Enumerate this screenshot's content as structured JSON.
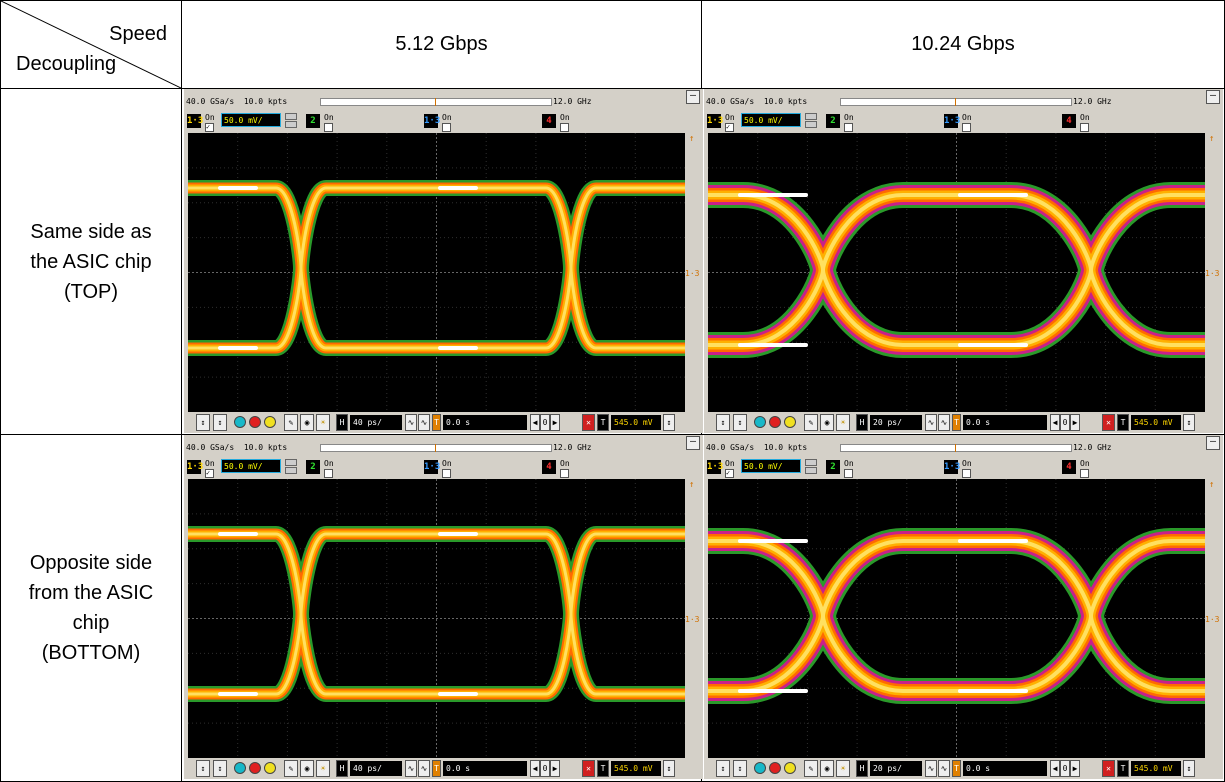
{
  "table": {
    "corner": {
      "speed": "Speed",
      "decoupling": "Decoupling"
    },
    "columns": [
      "5.12 Gbps",
      "10.24 Gbps"
    ],
    "rows": [
      {
        "lines": [
          "Same side as",
          "the ASIC chip",
          "(TOP)"
        ]
      },
      {
        "lines": [
          "Opposite side",
          "from the ASIC",
          "chip",
          "(BOTTOM)"
        ]
      }
    ]
  },
  "scope": {
    "sample_rate": "40.0 GSa/s",
    "points": "10.0 kpts",
    "bandwidth": "12.0 GHz",
    "channels": [
      {
        "badge": "1·3",
        "color": "#ffd700",
        "on_label": "On",
        "checked": true,
        "scale": "50.0 mV/"
      },
      {
        "badge": "2",
        "color": "#30e030",
        "on_label": "On",
        "checked": false
      },
      {
        "badge": "1·3",
        "color": "#3399ff",
        "on_label": "On",
        "checked": false
      },
      {
        "badge": "4",
        "color": "#ff3030",
        "on_label": "On",
        "checked": false
      }
    ],
    "h_label": "H",
    "delay": "0.0 s",
    "t_label": "T",
    "trigger_level": "545.0 mV",
    "trigger_marker": "1·3",
    "panels": [
      {
        "timebase": "40 ps/",
        "bit_rate_gbps": 5.12,
        "decoupling": "TOP"
      },
      {
        "timebase": "20 ps/",
        "bit_rate_gbps": 10.24,
        "decoupling": "TOP"
      },
      {
        "timebase": "40 ps/",
        "bit_rate_gbps": 5.12,
        "decoupling": "BOTTOM"
      },
      {
        "timebase": "20 ps/",
        "bit_rate_gbps": 10.24,
        "decoupling": "BOTTOM"
      }
    ]
  }
}
